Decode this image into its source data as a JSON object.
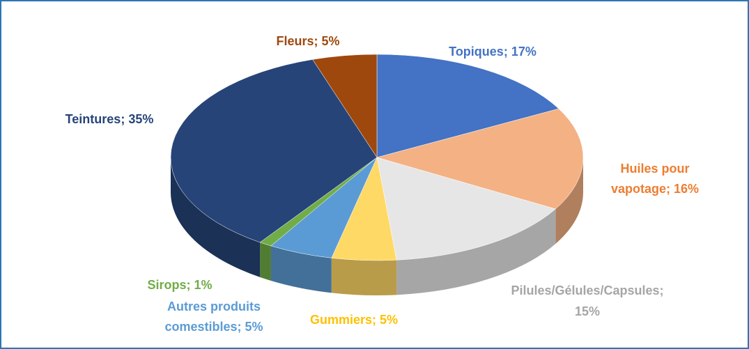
{
  "chart_data": {
    "type": "pie3d",
    "values": [
      17,
      16,
      15,
      5,
      5,
      1,
      35,
      5
    ],
    "value_labels": [
      [
        "Topiques; 17%"
      ],
      [
        "Huiles pour",
        "vapotage; 16%"
      ],
      [
        "Pilules/Gélules/Capsules;",
        "15%"
      ],
      [
        "Gummiers; 5%"
      ],
      [
        "Autres produits",
        "comestibles; 5%"
      ],
      [
        "Sirops; 1%"
      ],
      [
        "Teintures; 35%"
      ],
      [
        "Fleurs; 5%"
      ]
    ],
    "colors": [
      "#4472c4",
      "#f4b183",
      "#e7e6e6",
      "#ffd966",
      "#5b9bd5",
      "#70ad47",
      "#264478",
      "#9e480e"
    ],
    "label_colors": [
      "#4472c4",
      "#ed7d31",
      "#a5a5a5",
      "#ffc000",
      "#5b9bd5",
      "#70ad47",
      "#264478",
      "#9e480e"
    ]
  }
}
